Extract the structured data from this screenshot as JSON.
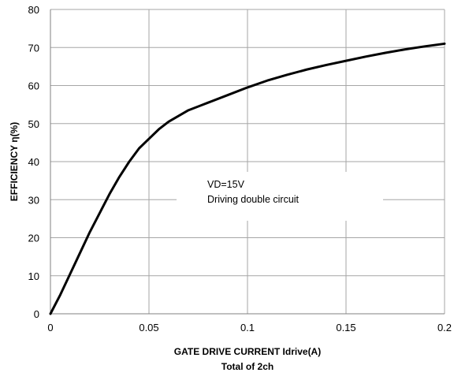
{
  "chart_data": {
    "type": "line",
    "title": "",
    "xlabel": "GATE DRIVE CURRENT Idrive(A)",
    "xlabel_sub": "Total of 2ch",
    "ylabel": "EFFICIENCY η(%)",
    "xlim": [
      0,
      0.2
    ],
    "ylim": [
      0,
      80
    ],
    "x_ticks": [
      "0",
      "0.05",
      "0.1",
      "0.15",
      "0.2"
    ],
    "y_ticks": [
      "0",
      "10",
      "20",
      "30",
      "40",
      "50",
      "60",
      "70",
      "80"
    ],
    "grid": true,
    "annotations": [
      "VD=15V",
      "Driving double circuit"
    ],
    "series": [
      {
        "x": [
          0,
          0.005,
          0.01,
          0.015,
          0.02,
          0.025,
          0.03,
          0.035,
          0.04,
          0.045,
          0.05,
          0.055,
          0.06,
          0.065,
          0.07,
          0.08,
          0.09,
          0.1,
          0.11,
          0.12,
          0.13,
          0.14,
          0.15,
          0.16,
          0.17,
          0.18,
          0.19,
          0.2
        ],
        "values": [
          0,
          5,
          10.5,
          16,
          21.5,
          26.5,
          31.5,
          36,
          40,
          43.5,
          46,
          48.5,
          50.5,
          52,
          53.5,
          55.5,
          57.5,
          59.5,
          61.3,
          62.8,
          64.2,
          65.4,
          66.5,
          67.6,
          68.6,
          69.5,
          70.3,
          71
        ]
      }
    ],
    "colors": {
      "line": "#000000",
      "grid": "#a6a6a6",
      "axis": "#808080"
    }
  }
}
